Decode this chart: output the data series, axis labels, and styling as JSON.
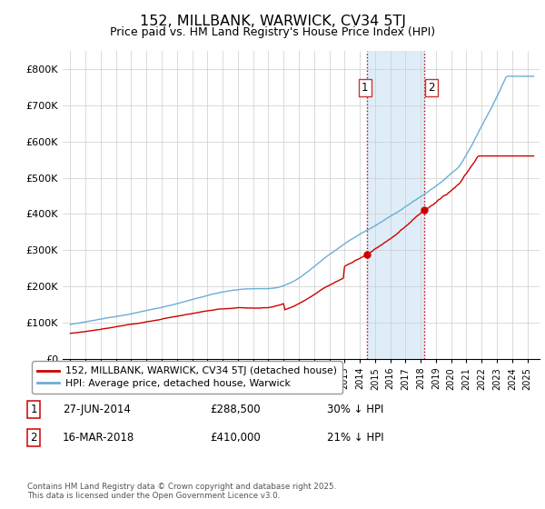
{
  "title1": "152, MILLBANK, WARWICK, CV34 5TJ",
  "title2": "Price paid vs. HM Land Registry's House Price Index (HPI)",
  "hpi_label": "HPI: Average price, detached house, Warwick",
  "property_label": "152, MILLBANK, WARWICK, CV34 5TJ (detached house)",
  "legend_note": "Contains HM Land Registry data © Crown copyright and database right 2025.\nThis data is licensed under the Open Government Licence v3.0.",
  "sale1_date": "27-JUN-2014",
  "sale1_price": 288500,
  "sale1_note": "30% ↓ HPI",
  "sale2_date": "16-MAR-2018",
  "sale2_price": 410000,
  "sale2_note": "21% ↓ HPI",
  "sale1_x": 2014.49,
  "sale2_x": 2018.21,
  "hpi_color": "#6aaed6",
  "property_color": "#cc0000",
  "shade_color": "#daeaf7",
  "vline_color": "#cc0000",
  "background_color": "#ffffff",
  "grid_color": "#cccccc",
  "ylim_min": 0,
  "ylim_max": 850000,
  "xlim_min": 1994.5,
  "xlim_max": 2025.8
}
